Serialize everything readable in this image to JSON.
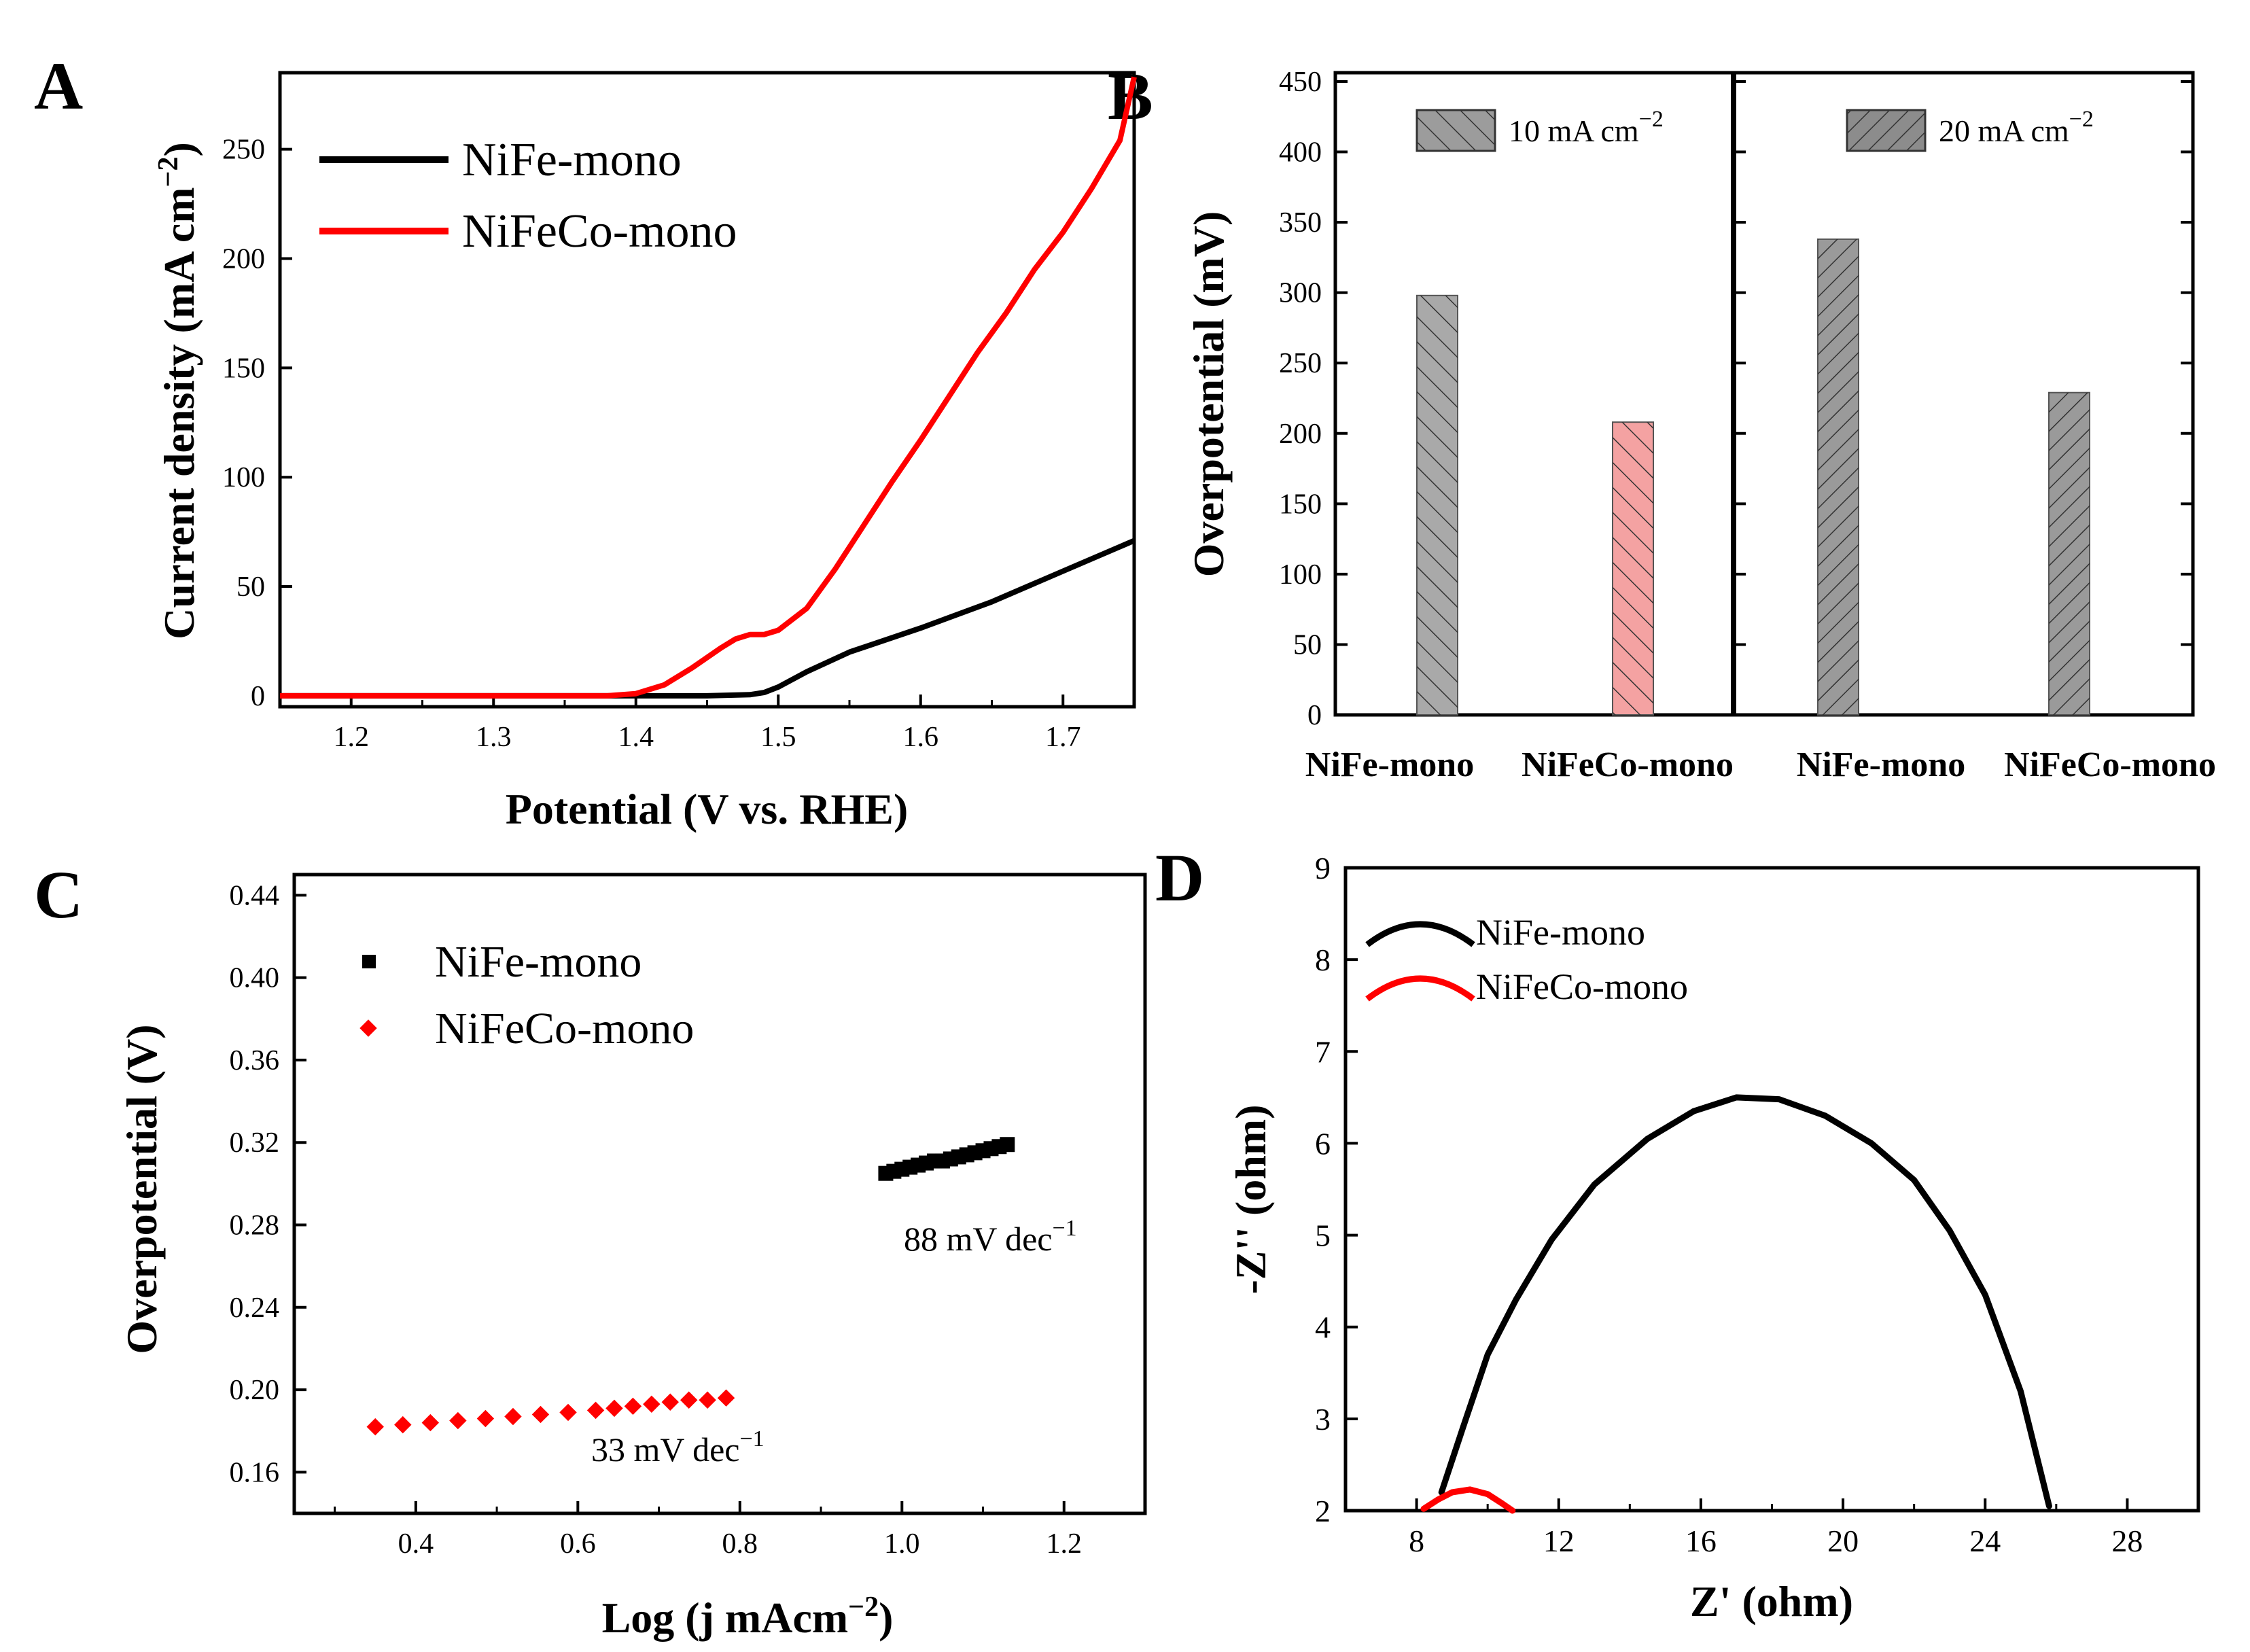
{
  "chart_data": [
    {
      "panel": "A",
      "type": "line",
      "xlabel": "Potential (V vs. RHE)",
      "ylabel": "Current density (mA cm−2)",
      "ylabel_main": "Current density (mA cm",
      "ylabel_sup": "−2",
      "ylabel_close": ")",
      "xlim": [
        1.15,
        1.75
      ],
      "ylim": [
        -5,
        285
      ],
      "xticks": [
        1.2,
        1.3,
        1.4,
        1.5,
        1.6,
        1.7
      ],
      "xtick_labels": [
        "1.2",
        "1.3",
        "1.4",
        "1.5",
        "1.6",
        "1.7"
      ],
      "yticks": [
        0,
        50,
        100,
        150,
        200,
        250
      ],
      "ytick_labels": [
        "0",
        "50",
        "100",
        "150",
        "200",
        "250"
      ],
      "legend_position": "top-left",
      "series": [
        {
          "name": "NiFe-mono",
          "color": "#000000",
          "x": [
            1.15,
            1.3,
            1.4,
            1.45,
            1.48,
            1.49,
            1.5,
            1.52,
            1.55,
            1.6,
            1.65,
            1.7,
            1.75
          ],
          "y": [
            0,
            0,
            0,
            0,
            0.5,
            1.5,
            4,
            11,
            20,
            31,
            43,
            57,
            71
          ]
        },
        {
          "name": "NiFeCo-mono",
          "color": "#ff0000",
          "x": [
            1.15,
            1.3,
            1.38,
            1.4,
            1.42,
            1.44,
            1.46,
            1.47,
            1.48,
            1.49,
            1.5,
            1.52,
            1.54,
            1.56,
            1.58,
            1.6,
            1.62,
            1.64,
            1.66,
            1.68,
            1.7,
            1.72,
            1.74,
            1.75
          ],
          "y": [
            0,
            0,
            0,
            1,
            5,
            13,
            22,
            26,
            28,
            28,
            30,
            40,
            58,
            78,
            98,
            117,
            137,
            157,
            175,
            195,
            212,
            232,
            254,
            283
          ]
        }
      ]
    },
    {
      "panel": "B",
      "type": "bar",
      "ylabel": "Overpotential (mV)",
      "ylim": [
        0,
        450
      ],
      "yticks": [
        0,
        50,
        100,
        150,
        200,
        250,
        300,
        350,
        400,
        450
      ],
      "ytick_labels": [
        "0",
        "50",
        "100",
        "150",
        "200",
        "250",
        "300",
        "350",
        "400",
        "450"
      ],
      "categories": [
        "NiFe-mono",
        "NiFeCo-mono"
      ],
      "series": [
        {
          "name": "10 mA cm−2",
          "legend_main": "10 mA cm",
          "legend_sup": "−2",
          "values": [
            298,
            208
          ],
          "colors": [
            "#a9a9a9",
            "#f4a2a2"
          ],
          "hatch": "back-diagonal"
        },
        {
          "name": "20 mA cm−2",
          "legend_main": "20 mA cm",
          "legend_sup": "−2",
          "values": [
            338,
            229
          ],
          "colors": [
            "#9a9a9a",
            "#9a9a9a"
          ],
          "hatch": "diagonal"
        }
      ]
    },
    {
      "panel": "C",
      "type": "scatter",
      "xlabel": "Log (j mAcm−2)",
      "xlabel_main": "Log (j mAcm",
      "xlabel_sup": "−2",
      "xlabel_close": ")",
      "ylabel": "Overpotential (V)",
      "xlim": [
        0.25,
        1.3
      ],
      "ylim": [
        0.14,
        0.45
      ],
      "xticks": [
        0.4,
        0.6,
        0.8,
        1.0,
        1.2
      ],
      "xtick_labels": [
        "0.4",
        "0.6",
        "0.8",
        "1.0",
        "1.2"
      ],
      "yticks": [
        0.16,
        0.2,
        0.24,
        0.28,
        0.32,
        0.36,
        0.4,
        0.44
      ],
      "ytick_labels": [
        "0.16",
        "0.20",
        "0.24",
        "0.28",
        "0.32",
        "0.36",
        "0.40",
        "0.44"
      ],
      "legend_position": "top-left",
      "series": [
        {
          "name": "NiFe-mono",
          "color": "#000000",
          "marker": "square",
          "x": [
            0.98,
            0.99,
            1.0,
            1.01,
            1.02,
            1.03,
            1.04,
            1.05,
            1.06,
            1.07,
            1.08,
            1.09,
            1.1,
            1.11,
            1.12,
            1.13
          ],
          "y": [
            0.305,
            0.306,
            0.307,
            0.308,
            0.309,
            0.31,
            0.311,
            0.311,
            0.312,
            0.313,
            0.314,
            0.315,
            0.316,
            0.317,
            0.318,
            0.319
          ],
          "annotation": "88 mV dec−1",
          "annotation_main": "88 mV dec",
          "annotation_sup": "−1"
        },
        {
          "name": "NiFeCo-mono",
          "color": "#ff0000",
          "marker": "diamond",
          "x": [
            0.35,
            0.384,
            0.418,
            0.452,
            0.486,
            0.52,
            0.554,
            0.588,
            0.622,
            0.645,
            0.668,
            0.691,
            0.714,
            0.737,
            0.76,
            0.783
          ],
          "y": [
            0.182,
            0.183,
            0.184,
            0.185,
            0.186,
            0.187,
            0.188,
            0.189,
            0.19,
            0.191,
            0.192,
            0.193,
            0.194,
            0.195,
            0.195,
            0.196
          ],
          "annotation": "33 mV dec−1",
          "annotation_main": "33 mV dec",
          "annotation_sup": "−1"
        }
      ]
    },
    {
      "panel": "D",
      "type": "line",
      "xlabel": "Z' (ohm)",
      "ylabel": "-Z'' (ohm)",
      "xlim": [
        6,
        30
      ],
      "ylim": [
        2,
        9
      ],
      "xticks": [
        8,
        12,
        16,
        20,
        24,
        28
      ],
      "xtick_labels": [
        "8",
        "12",
        "16",
        "20",
        "24",
        "28"
      ],
      "yticks": [
        2,
        3,
        4,
        5,
        6,
        7,
        8,
        9
      ],
      "ytick_labels": [
        "2",
        "3",
        "4",
        "5",
        "6",
        "7",
        "8",
        "9"
      ],
      "legend_position": "top-left",
      "series": [
        {
          "name": "NiFe-mono",
          "color": "#000000",
          "x": [
            8.7,
            9.3,
            10.0,
            10.8,
            11.8,
            13.0,
            14.5,
            15.8,
            17.0,
            18.2,
            19.5,
            20.8,
            22.0,
            23.0,
            24.0,
            25.0,
            25.8
          ],
          "y": [
            2.2,
            2.9,
            3.7,
            4.3,
            4.95,
            5.55,
            6.05,
            6.35,
            6.5,
            6.48,
            6.3,
            6.0,
            5.6,
            5.05,
            4.35,
            3.3,
            2.05
          ]
        },
        {
          "name": "NiFeCo-mono",
          "color": "#ff0000",
          "x": [
            8.2,
            8.6,
            9.0,
            9.5,
            10.0,
            10.4,
            10.7
          ],
          "y": [
            2.02,
            2.12,
            2.2,
            2.23,
            2.18,
            2.08,
            2.0
          ]
        }
      ]
    }
  ],
  "panel_labels": {
    "a": "A",
    "b": "B",
    "c": "C",
    "d": "D"
  }
}
